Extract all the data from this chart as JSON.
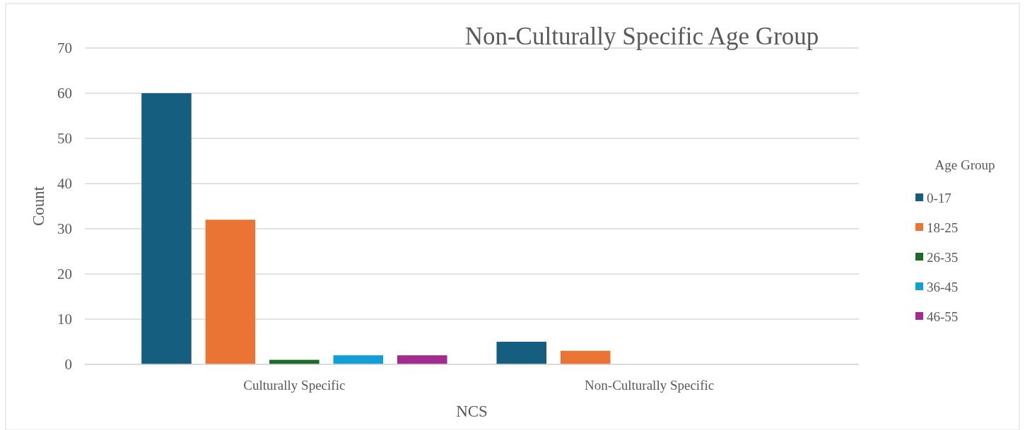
{
  "chart_data": {
    "type": "bar",
    "title": "Non-Culturally Specific Age Group",
    "xlabel": "NCS",
    "ylabel": "Count",
    "legend_title": "Age Group",
    "categories": [
      "Culturally Specific",
      "Non-Culturally Specific"
    ],
    "series": [
      {
        "name": "0-17",
        "color": "#165e80",
        "values": [
          60,
          5
        ]
      },
      {
        "name": "18-25",
        "color": "#e97434",
        "values": [
          32,
          3
        ]
      },
      {
        "name": "26-35",
        "color": "#1e6b28",
        "values": [
          1,
          null
        ]
      },
      {
        "name": "36-45",
        "color": "#129fd6",
        "values": [
          2,
          null
        ]
      },
      {
        "name": "46-55",
        "color": "#a12b8f",
        "values": [
          2,
          null
        ]
      }
    ],
    "ylim": [
      0,
      70
    ],
    "yticks": [
      0,
      10,
      20,
      30,
      40,
      50,
      60,
      70
    ],
    "grid": "y",
    "legend": "right"
  }
}
